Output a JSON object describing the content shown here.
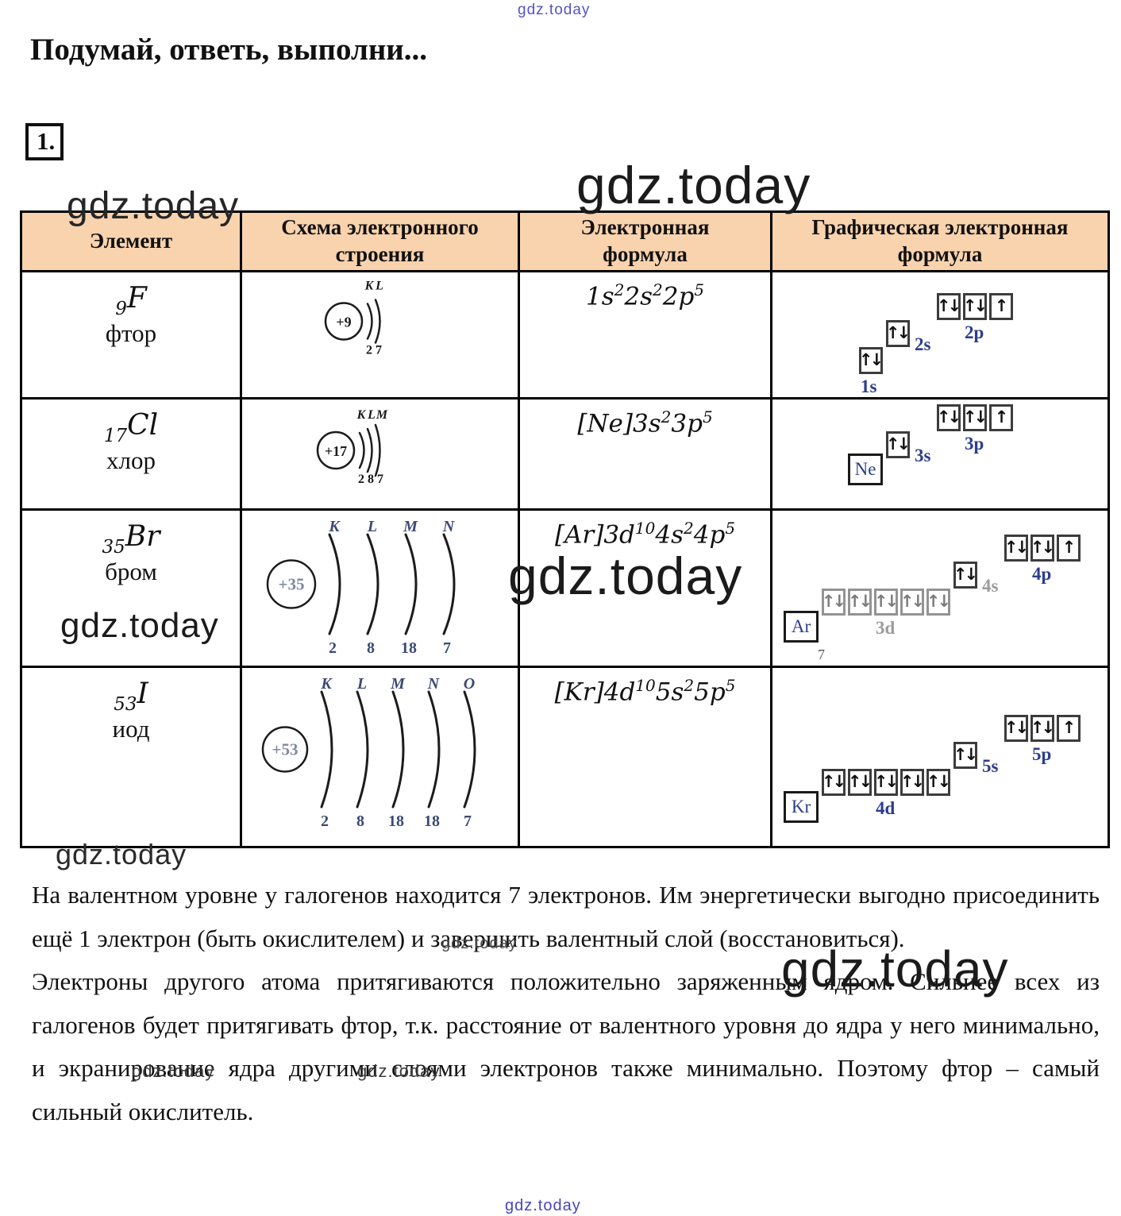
{
  "watermark": {
    "text": "gdz.today"
  },
  "page": {
    "title": "Подумай, ответь, выполни...",
    "task_number": "1."
  },
  "table": {
    "headers": [
      "Элемент",
      "Схема электронного строения",
      "Электронная формула",
      "Графическая электронная формула"
    ],
    "rows": [
      {
        "element": {
          "number": "9",
          "symbol": "F",
          "name": "фтор"
        },
        "scheme": {
          "charge": "+9",
          "shells": [
            "K",
            "L"
          ],
          "counts": [
            "2",
            "7"
          ],
          "style": "compact",
          "faded": false
        },
        "formula": [
          [
            "1s",
            "2"
          ],
          [
            "2s",
            "2"
          ],
          [
            "2p",
            "5"
          ]
        ],
        "orbitals": {
          "core": null,
          "groups": [
            {
              "label": "1s",
              "labelPos": "below",
              "boxes": [
                "du"
              ]
            },
            {
              "label": "2s",
              "labelPos": "right",
              "boxes": [
                "du"
              ]
            },
            {
              "label": "2p",
              "labelPos": "below",
              "boxes": [
                "du",
                "du",
                "u"
              ]
            }
          ]
        }
      },
      {
        "element": {
          "number": "17",
          "symbol": "Cl",
          "name": "хлор"
        },
        "scheme": {
          "charge": "+17",
          "shells": [
            "K",
            "L",
            "M"
          ],
          "counts": [
            "2",
            "8",
            "7"
          ],
          "style": "compact",
          "faded": false
        },
        "formula": [
          [
            "[Ne]3s",
            "2"
          ],
          [
            "3p",
            "5"
          ]
        ],
        "orbitals": {
          "core": "Ne",
          "groups": [
            {
              "label": "3s",
              "labelPos": "right",
              "boxes": [
                "du"
              ]
            },
            {
              "label": "3p",
              "labelPos": "below",
              "boxes": [
                "du",
                "du",
                "u"
              ]
            }
          ]
        }
      },
      {
        "element": {
          "number": "35",
          "symbol": "Br",
          "name": "бром"
        },
        "scheme": {
          "charge": "+35",
          "shells": [
            "K",
            "L",
            "M",
            "N"
          ],
          "counts": [
            "2",
            "8",
            "18",
            "7"
          ],
          "style": "wide",
          "faded": true
        },
        "formula": [
          [
            "[Ar]3d",
            "10"
          ],
          [
            "4s",
            "2"
          ],
          [
            "4p",
            "5"
          ]
        ],
        "orbitals": {
          "core": "Ar",
          "note": "7",
          "groups": [
            {
              "label": "3d",
              "labelPos": "below",
              "boxes": [
                "du",
                "du",
                "du",
                "du",
                "du"
              ],
              "muted": true
            },
            {
              "label": "4s",
              "labelPos": "right",
              "boxes": [
                "du"
              ],
              "labelMuted": true
            },
            {
              "label": "4p",
              "labelPos": "below",
              "boxes": [
                "du",
                "du",
                "u"
              ]
            }
          ]
        }
      },
      {
        "element": {
          "number": "53",
          "symbol": "I",
          "name": "иод"
        },
        "scheme": {
          "charge": "+53",
          "shells": [
            "K",
            "L",
            "M",
            "N",
            "O"
          ],
          "counts": [
            "2",
            "8",
            "18",
            "18",
            "7"
          ],
          "style": "wide",
          "faded": true
        },
        "formula": [
          [
            "[Kr]4d",
            "10"
          ],
          [
            "5s",
            "2"
          ],
          [
            "5p",
            "5"
          ]
        ],
        "orbitals": {
          "core": "Kr",
          "groups": [
            {
              "label": "4d",
              "labelPos": "below",
              "boxes": [
                "du",
                "du",
                "du",
                "du",
                "du"
              ]
            },
            {
              "label": "5s",
              "labelPos": "right",
              "boxes": [
                "du"
              ]
            },
            {
              "label": "5p",
              "labelPos": "below",
              "boxes": [
                "du",
                "du",
                "u"
              ]
            }
          ]
        }
      }
    ]
  },
  "answer": {
    "paragraphs": [
      "На валентном уровне у галогенов находится 7 электронов. Им энергетически выгодно присоединить ещё 1 электрон (быть окислителем) и завершить валентный слой (восстановиться).",
      "Электроны другого атома притягиваются положительно заряженным ядром. Сильнее всех из галогенов будет притягивать фтор, т.к. расстояние от валентного уровня до ядра у него минимально, и экранирование ядра другими слоями электронов также минимально. Поэтому фтор – самый сильный окислитель."
    ]
  },
  "colors": {
    "header_bg": "#f9d3ae",
    "table_border": "#000000",
    "orbital_label": "#2c3d8f",
    "core_label": "#2d3f85",
    "muted_gray": "#9b9b9b",
    "watermark_blue": "#5353c8",
    "watermark_gray": "#1b1b1b"
  }
}
